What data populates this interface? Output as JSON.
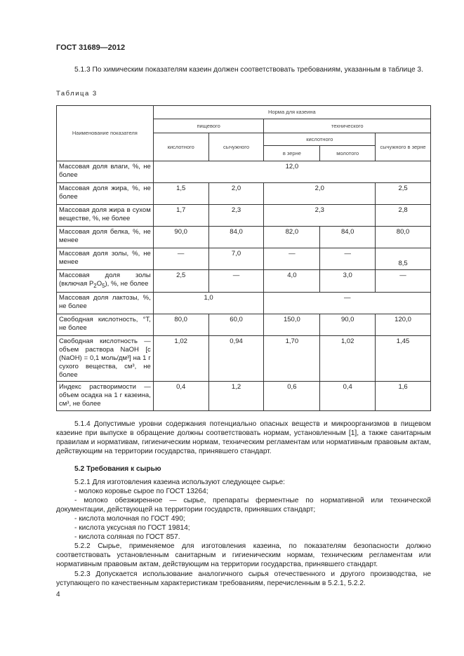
{
  "header": "ГОСТ 31689—2012",
  "p513": "5.1.3 По химическим показателям казеин должен соответствовать требованиям, указанным в таблице 3.",
  "caption": "Таблица 3",
  "table": {
    "h_name": "Наименование показателя",
    "h_norm": "Норма для казеина",
    "h_food": "пищевого",
    "h_tech": "технического",
    "h_acid": "кислотного",
    "h_rennet": "сычужного",
    "h_tacid": "кислотного",
    "h_trennet": "сычужного в зерне",
    "h_grain": "в зерне",
    "h_ground": "молотого",
    "rows": [
      {
        "name": "Массовая доля влаги, %, не более",
        "all": "12,0"
      },
      {
        "name": "Массовая доля жира, %, не более",
        "c1": "1,5",
        "c2": "2,0",
        "c34": "2,0",
        "c5": "2,5"
      },
      {
        "name": "Массовая доля жира в сухом веществе, %, не более",
        "c1": "1,7",
        "c2": "2,3",
        "c34": "2,3",
        "c5": "2,8"
      },
      {
        "name": "Массовая доля белка, %, не менее",
        "c1": "90,0",
        "c2": "84,0",
        "c3": "82,0",
        "c4": "84,0",
        "c5": "80,0"
      },
      {
        "name": "Массовая доля золы, %, не менее",
        "c1": "—",
        "c2": "7,0",
        "c3": "—",
        "c4": "—",
        "c5": "8,5"
      },
      {
        "name_a": "Массовая доля золы (включая P",
        "sub1": "2",
        "name_b": "O",
        "sub2": "5",
        "name_c": "), %, не более",
        "c1": "2,5",
        "c2": "—",
        "c3": "4,0",
        "c4": "3,0",
        "c5": "—"
      },
      {
        "name": "Массовая доля лактозы, %, не более",
        "c12": "1,0",
        "c345": "—"
      },
      {
        "name": "Свободная кислотность, °Т, не более",
        "c1": "80,0",
        "c2": "60,0",
        "c3": "150,0",
        "c4": "90,0",
        "c5": "120,0"
      },
      {
        "name": "Свободная кислотность — объем раствора NaOH [с (NaOH) = 0,1 моль/дм³] на 1 г сухого вещества, см³, не более",
        "c1": "1,02",
        "c2": "0,94",
        "c3": "1,70",
        "c4": "1,02",
        "c5": "1,45"
      },
      {
        "name": "Индекс растворимости — объем осадка на 1 г казеина, см³, не более",
        "c1": "0,4",
        "c2": "1,2",
        "c3": "0,6",
        "c4": "0,4",
        "c5": "1,6"
      }
    ]
  },
  "p514": "5.1.4 Допустимые уровни содержания потенциально опасных веществ и микроорганизмов в пищевом казеине при выпуске в обращение должны соответствовать нормам, установленным [1], а также санитарным правилам и нормативам, гигиеническим нормам, техническим регламентам или нормативным правовым актам, действующим на территории государства, принявшего стандарт.",
  "s52": "5.2 Требования к сырью",
  "p521": "5.2.1 Для изготовления казеина используют следующее сырье:",
  "list": [
    "- молоко коровье сырое по ГОСТ 13264;",
    "- молоко обезжиренное — сырье, препараты ферментные по нормативной или технической документации, действующей на территории государств, принявших стандарт;",
    "- кислота молочная по ГОСТ 490;",
    "- кислота уксусная по ГОСТ 19814;",
    "- кислота соляная по ГОСТ 857."
  ],
  "p522": "5.2.2 Сырье, применяемое для изготовления казеина, по показателям безопасности должно соответствовать установленным санитарным и гигиеническим нормам, техническим регламентам или нормативным правовым актам, действующим на территории государства, принявшего стандарт.",
  "p523": "5.2.3 Допускается использование аналогичного сырья отечественного и другого производства, не уступающего по качественным характеристикам требованиям, перечисленным в 5.2.1, 5.2.2.",
  "page_number": "4"
}
